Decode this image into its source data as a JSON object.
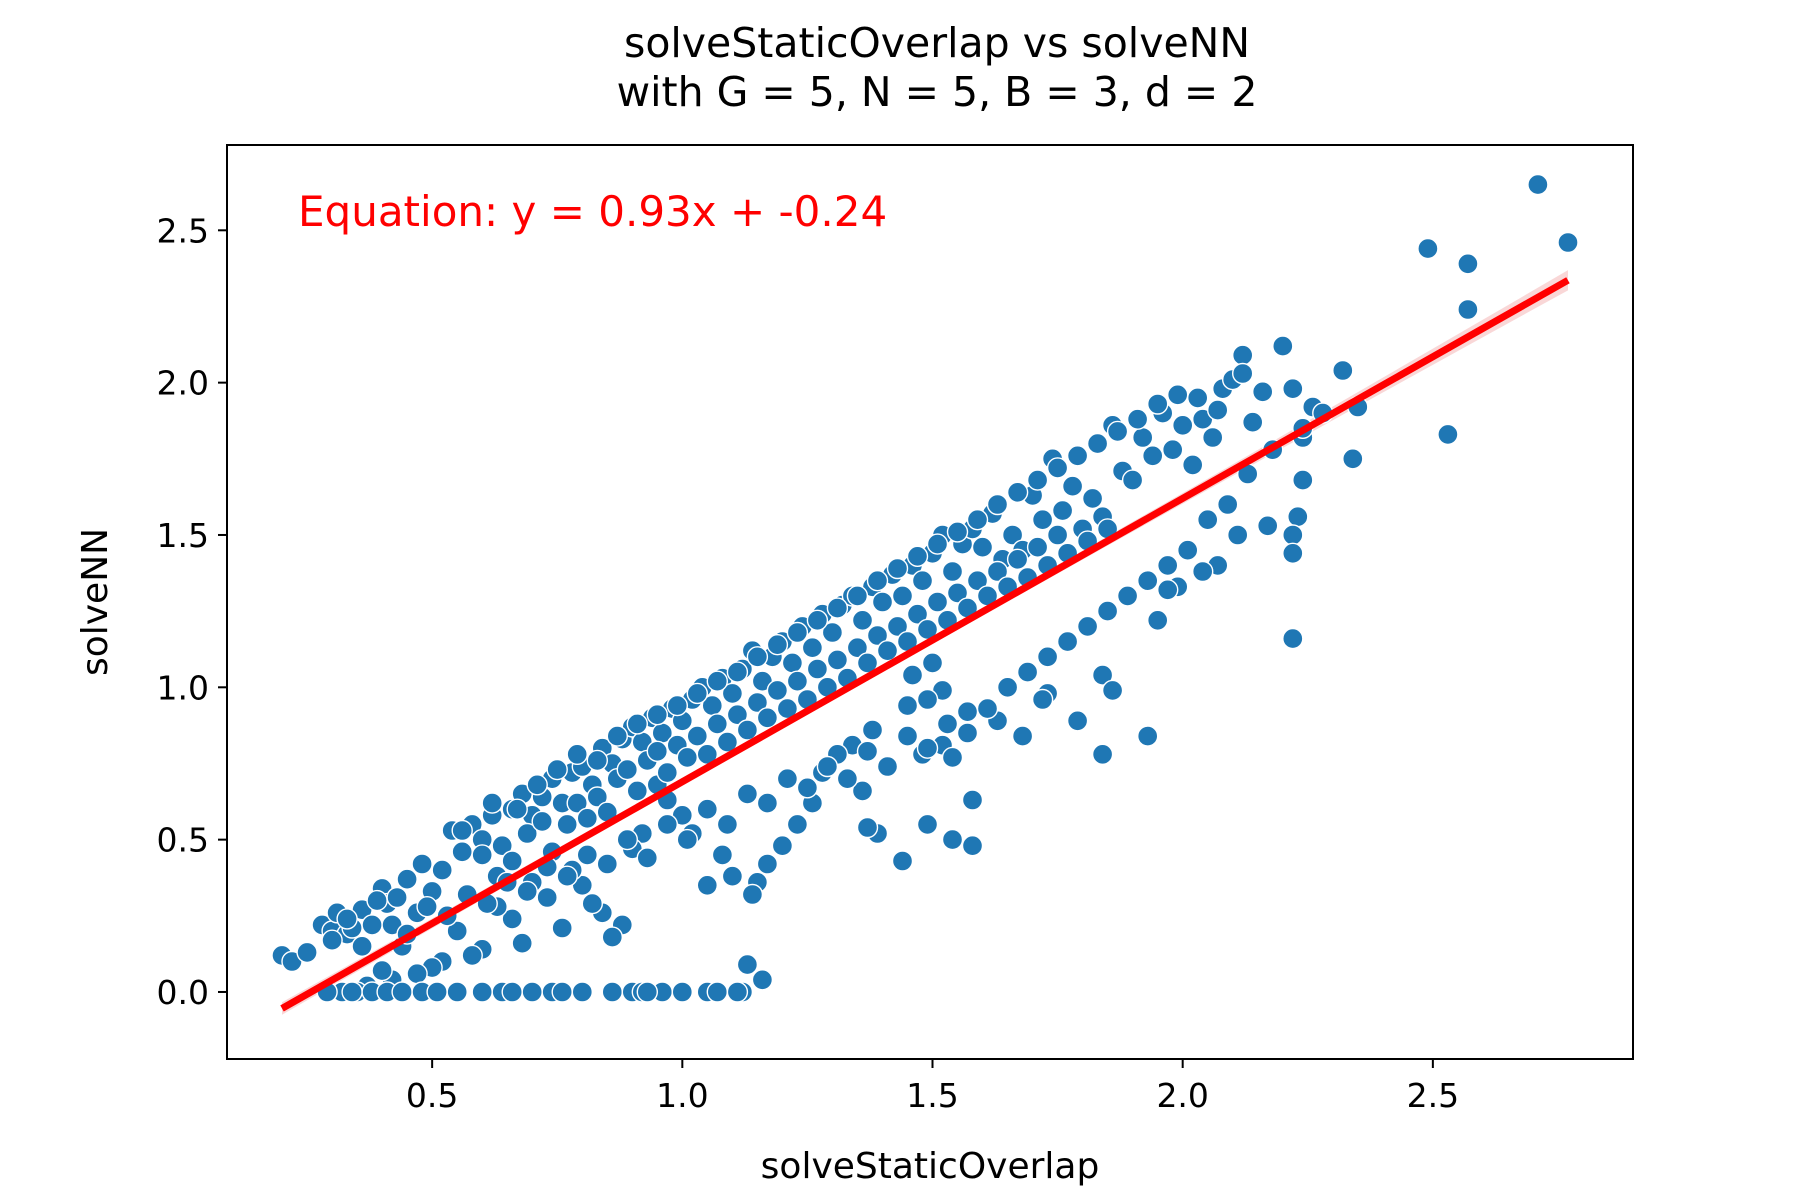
{
  "chart_data": {
    "type": "scatter",
    "title": "solveStaticOverlap vs solveNN",
    "subtitle": "with G = 5, N = 5, B = 3, d = 2",
    "xlabel": "solveStaticOverlap",
    "ylabel": "solveNN",
    "xlim": [
      0.09,
      2.9
    ],
    "ylim": [
      -0.22,
      2.78
    ],
    "xticks": [
      0.5,
      1.0,
      1.5,
      2.0,
      2.5
    ],
    "xtick_labels": [
      "0.5",
      "1.0",
      "1.5",
      "2.0",
      "2.5"
    ],
    "yticks": [
      0.0,
      0.5,
      1.0,
      1.5,
      2.0,
      2.5
    ],
    "ytick_labels": [
      "0.0",
      "0.5",
      "1.0",
      "1.5",
      "2.0",
      "2.5"
    ],
    "grid": false,
    "equation": "Equation: y = 0.93x + -0.24",
    "regression": {
      "slope": 0.93,
      "intercept": -0.24,
      "x_range": [
        0.2,
        2.77
      ]
    },
    "colors": {
      "points": "#1f77b4",
      "point_edge": "#ffffff",
      "regression": "#ff0000",
      "confidence_band": "#f4b6b6",
      "equation": "#ff0000"
    },
    "points": [
      [
        0.2,
        0.12
      ],
      [
        0.22,
        0.1
      ],
      [
        0.25,
        0.13
      ],
      [
        0.28,
        0.22
      ],
      [
        0.3,
        0.2
      ],
      [
        0.31,
        0.26
      ],
      [
        0.33,
        0.19
      ],
      [
        0.34,
        0.21
      ],
      [
        0.36,
        0.27
      ],
      [
        0.38,
        0.22
      ],
      [
        0.4,
        0.34
      ],
      [
        0.41,
        0.29
      ],
      [
        0.43,
        0.31
      ],
      [
        0.45,
        0.37
      ],
      [
        0.47,
        0.26
      ],
      [
        0.48,
        0.42
      ],
      [
        0.5,
        0.33
      ],
      [
        0.52,
        0.4
      ],
      [
        0.54,
        0.53
      ],
      [
        0.56,
        0.46
      ],
      [
        0.58,
        0.55
      ],
      [
        0.6,
        0.5
      ],
      [
        0.62,
        0.58
      ],
      [
        0.64,
        0.48
      ],
      [
        0.66,
        0.6
      ],
      [
        0.68,
        0.65
      ],
      [
        0.7,
        0.58
      ],
      [
        0.72,
        0.64
      ],
      [
        0.74,
        0.7
      ],
      [
        0.76,
        0.62
      ],
      [
        0.78,
        0.72
      ],
      [
        0.8,
        0.74
      ],
      [
        0.82,
        0.68
      ],
      [
        0.84,
        0.8
      ],
      [
        0.86,
        0.75
      ],
      [
        0.88,
        0.83
      ],
      [
        0.9,
        0.87
      ],
      [
        0.92,
        0.82
      ],
      [
        0.94,
        0.9
      ],
      [
        0.96,
        0.85
      ],
      [
        0.98,
        0.93
      ],
      [
        1.0,
        0.89
      ],
      [
        1.02,
        0.96
      ],
      [
        1.04,
        1.0
      ],
      [
        1.06,
        0.94
      ],
      [
        1.08,
        1.03
      ],
      [
        1.1,
        0.98
      ],
      [
        1.12,
        1.06
      ],
      [
        1.14,
        1.12
      ],
      [
        1.16,
        1.02
      ],
      [
        1.18,
        1.1
      ],
      [
        1.2,
        1.15
      ],
      [
        1.22,
        1.08
      ],
      [
        1.24,
        1.2
      ],
      [
        1.26,
        1.13
      ],
      [
        1.28,
        1.24
      ],
      [
        1.3,
        1.18
      ],
      [
        1.32,
        1.27
      ],
      [
        1.34,
        1.3
      ],
      [
        1.36,
        1.22
      ],
      [
        1.38,
        1.33
      ],
      [
        1.4,
        1.28
      ],
      [
        1.42,
        1.37
      ],
      [
        1.44,
        1.3
      ],
      [
        1.46,
        1.4
      ],
      [
        1.48,
        1.35
      ],
      [
        1.5,
        1.44
      ],
      [
        1.52,
        1.5
      ],
      [
        1.54,
        1.38
      ],
      [
        1.56,
        1.47
      ],
      [
        1.58,
        1.52
      ],
      [
        1.6,
        1.46
      ],
      [
        1.62,
        1.57
      ],
      [
        1.64,
        1.42
      ],
      [
        1.66,
        1.5
      ],
      [
        1.68,
        1.45
      ],
      [
        1.7,
        1.63
      ],
      [
        1.72,
        1.55
      ],
      [
        1.74,
        1.75
      ],
      [
        1.76,
        1.58
      ],
      [
        1.78,
        1.66
      ],
      [
        1.8,
        1.52
      ],
      [
        1.82,
        1.62
      ],
      [
        1.84,
        1.56
      ],
      [
        1.86,
        1.86
      ],
      [
        1.88,
        1.71
      ],
      [
        1.9,
        1.68
      ],
      [
        1.92,
        1.82
      ],
      [
        1.94,
        1.76
      ],
      [
        1.96,
        1.9
      ],
      [
        1.98,
        1.78
      ],
      [
        2.0,
        1.86
      ],
      [
        2.02,
        1.73
      ],
      [
        2.04,
        1.88
      ],
      [
        2.06,
        1.82
      ],
      [
        2.08,
        1.98
      ],
      [
        2.1,
        2.01
      ],
      [
        2.12,
        2.09
      ],
      [
        2.14,
        1.87
      ],
      [
        2.2,
        2.12
      ],
      [
        2.22,
        1.98
      ],
      [
        2.26,
        1.92
      ],
      [
        2.32,
        2.04
      ],
      [
        2.35,
        1.92
      ],
      [
        2.49,
        2.44
      ],
      [
        2.57,
        2.39
      ],
      [
        2.71,
        2.65
      ],
      [
        2.77,
        2.46
      ],
      [
        2.57,
        2.24
      ],
      [
        2.53,
        1.83
      ],
      [
        2.34,
        1.75
      ],
      [
        2.24,
        1.82
      ],
      [
        2.24,
        1.68
      ],
      [
        2.23,
        1.56
      ],
      [
        2.22,
        1.5
      ],
      [
        2.22,
        1.44
      ],
      [
        2.22,
        1.16
      ],
      [
        2.17,
        1.53
      ],
      [
        2.11,
        1.5
      ],
      [
        2.07,
        1.4
      ],
      [
        2.04,
        1.38
      ],
      [
        1.99,
        1.33
      ],
      [
        1.97,
        1.32
      ],
      [
        1.95,
        1.22
      ],
      [
        1.93,
        0.84
      ],
      [
        1.84,
        0.78
      ],
      [
        1.84,
        1.04
      ],
      [
        1.86,
        0.99
      ],
      [
        1.79,
        0.89
      ],
      [
        1.73,
        0.98
      ],
      [
        1.72,
        0.96
      ],
      [
        1.68,
        0.84
      ],
      [
        1.63,
        0.89
      ],
      [
        1.57,
        0.92
      ],
      [
        1.52,
        0.99
      ],
      [
        1.5,
        1.08
      ],
      [
        1.49,
        0.96
      ],
      [
        1.46,
        1.04
      ],
      [
        1.45,
        0.94
      ],
      [
        1.48,
        0.78
      ],
      [
        1.52,
        0.81
      ],
      [
        1.54,
        0.77
      ],
      [
        1.58,
        0.63
      ],
      [
        1.54,
        0.5
      ],
      [
        1.58,
        0.48
      ],
      [
        1.49,
        0.55
      ],
      [
        1.44,
        0.43
      ],
      [
        1.39,
        0.52
      ],
      [
        1.37,
        0.54
      ],
      [
        1.36,
        0.66
      ],
      [
        1.38,
        0.86
      ],
      [
        1.34,
        0.81
      ],
      [
        1.31,
        0.78
      ],
      [
        1.28,
        0.72
      ],
      [
        1.26,
        0.62
      ],
      [
        1.23,
        0.55
      ],
      [
        1.2,
        0.48
      ],
      [
        1.17,
        0.42
      ],
      [
        1.15,
        0.36
      ],
      [
        1.14,
        0.32
      ],
      [
        1.1,
        0.38
      ],
      [
        1.08,
        0.45
      ],
      [
        1.05,
        0.35
      ],
      [
        1.02,
        0.52
      ],
      [
        1.0,
        0.58
      ],
      [
        0.97,
        0.63
      ],
      [
        0.95,
        0.68
      ],
      [
        0.92,
        0.52
      ],
      [
        0.9,
        0.47
      ],
      [
        0.88,
        0.22
      ],
      [
        0.86,
        0.18
      ],
      [
        0.84,
        0.26
      ],
      [
        0.82,
        0.29
      ],
      [
        0.8,
        0.35
      ],
      [
        0.78,
        0.4
      ],
      [
        0.76,
        0.21
      ],
      [
        0.73,
        0.31
      ],
      [
        0.7,
        0.36
      ],
      [
        0.68,
        0.16
      ],
      [
        0.66,
        0.24
      ],
      [
        0.63,
        0.28
      ],
      [
        0.6,
        0.14
      ],
      [
        0.58,
        0.12
      ],
      [
        0.55,
        0.2
      ],
      [
        0.52,
        0.1
      ],
      [
        0.5,
        0.08
      ],
      [
        0.47,
        0.06
      ],
      [
        0.44,
        0.15
      ],
      [
        0.42,
        0.04
      ],
      [
        0.4,
        0.07
      ],
      [
        0.37,
        0.02
      ],
      [
        0.35,
        0.0
      ],
      [
        0.32,
        0.0
      ],
      [
        0.29,
        0.0
      ],
      [
        0.34,
        0.0
      ],
      [
        0.38,
        0.0
      ],
      [
        0.41,
        0.0
      ],
      [
        0.44,
        0.0
      ],
      [
        0.48,
        0.0
      ],
      [
        0.51,
        0.0
      ],
      [
        0.55,
        0.0
      ],
      [
        0.6,
        0.0
      ],
      [
        0.64,
        0.0
      ],
      [
        0.66,
        0.0
      ],
      [
        0.7,
        0.0
      ],
      [
        0.74,
        0.0
      ],
      [
        0.76,
        0.0
      ],
      [
        0.8,
        0.0
      ],
      [
        0.86,
        0.0
      ],
      [
        0.9,
        0.0
      ],
      [
        0.92,
        0.0
      ],
      [
        0.96,
        0.0
      ],
      [
        1.0,
        0.0
      ],
      [
        1.05,
        0.0
      ],
      [
        1.07,
        0.0
      ],
      [
        1.12,
        0.0
      ],
      [
        1.13,
        0.09
      ],
      [
        1.16,
        0.04
      ],
      [
        1.11,
        0.0
      ],
      [
        0.93,
        0.0
      ],
      [
        0.56,
        0.53
      ],
      [
        0.6,
        0.45
      ],
      [
        0.63,
        0.38
      ],
      [
        0.66,
        0.43
      ],
      [
        0.69,
        0.52
      ],
      [
        0.72,
        0.56
      ],
      [
        0.74,
        0.46
      ],
      [
        0.77,
        0.55
      ],
      [
        0.79,
        0.62
      ],
      [
        0.81,
        0.57
      ],
      [
        0.83,
        0.64
      ],
      [
        0.85,
        0.59
      ],
      [
        0.87,
        0.7
      ],
      [
        0.89,
        0.73
      ],
      [
        0.91,
        0.66
      ],
      [
        0.93,
        0.76
      ],
      [
        0.95,
        0.79
      ],
      [
        0.97,
        0.72
      ],
      [
        0.99,
        0.81
      ],
      [
        1.01,
        0.77
      ],
      [
        1.03,
        0.84
      ],
      [
        1.05,
        0.78
      ],
      [
        1.07,
        0.88
      ],
      [
        1.09,
        0.82
      ],
      [
        1.11,
        0.91
      ],
      [
        1.13,
        0.86
      ],
      [
        1.15,
        0.95
      ],
      [
        1.17,
        0.9
      ],
      [
        1.19,
        0.99
      ],
      [
        1.21,
        0.93
      ],
      [
        1.23,
        1.02
      ],
      [
        1.25,
        0.96
      ],
      [
        1.27,
        1.06
      ],
      [
        1.29,
        1.0
      ],
      [
        1.31,
        1.09
      ],
      [
        1.33,
        1.03
      ],
      [
        1.35,
        1.13
      ],
      [
        1.37,
        1.08
      ],
      [
        1.39,
        1.17
      ],
      [
        1.41,
        1.12
      ],
      [
        1.43,
        1.2
      ],
      [
        1.45,
        1.15
      ],
      [
        1.47,
        1.24
      ],
      [
        1.49,
        1.19
      ],
      [
        1.51,
        1.28
      ],
      [
        1.53,
        1.22
      ],
      [
        1.55,
        1.31
      ],
      [
        1.57,
        1.26
      ],
      [
        1.59,
        1.35
      ],
      [
        1.61,
        1.3
      ],
      [
        1.63,
        1.38
      ],
      [
        1.65,
        1.33
      ],
      [
        1.67,
        1.42
      ],
      [
        1.69,
        1.36
      ],
      [
        1.71,
        1.46
      ],
      [
        1.73,
        1.4
      ],
      [
        1.75,
        1.5
      ],
      [
        1.77,
        1.44
      ],
      [
        1.81,
        1.48
      ],
      [
        1.85,
        1.52
      ],
      [
        0.3,
        0.17
      ],
      [
        0.33,
        0.24
      ],
      [
        0.36,
        0.15
      ],
      [
        0.39,
        0.3
      ],
      [
        0.42,
        0.22
      ],
      [
        0.45,
        0.19
      ],
      [
        0.49,
        0.28
      ],
      [
        0.53,
        0.25
      ],
      [
        0.57,
        0.32
      ],
      [
        0.61,
        0.29
      ],
      [
        0.65,
        0.36
      ],
      [
        0.69,
        0.33
      ],
      [
        0.73,
        0.41
      ],
      [
        0.77,
        0.38
      ],
      [
        0.81,
        0.45
      ],
      [
        0.85,
        0.42
      ],
      [
        0.89,
        0.5
      ],
      [
        0.93,
        0.44
      ],
      [
        0.97,
        0.55
      ],
      [
        1.01,
        0.5
      ],
      [
        1.05,
        0.6
      ],
      [
        1.09,
        0.55
      ],
      [
        1.13,
        0.65
      ],
      [
        1.17,
        0.62
      ],
      [
        1.21,
        0.7
      ],
      [
        1.25,
        0.67
      ],
      [
        1.29,
        0.74
      ],
      [
        1.33,
        0.7
      ],
      [
        1.37,
        0.79
      ],
      [
        1.41,
        0.74
      ],
      [
        1.45,
        0.84
      ],
      [
        1.49,
        0.8
      ],
      [
        1.53,
        0.88
      ],
      [
        1.57,
        0.85
      ],
      [
        1.61,
        0.93
      ],
      [
        1.65,
        1.0
      ],
      [
        1.69,
        1.05
      ],
      [
        1.73,
        1.1
      ],
      [
        1.77,
        1.15
      ],
      [
        1.81,
        1.2
      ],
      [
        1.85,
        1.25
      ],
      [
        1.89,
        1.3
      ],
      [
        1.93,
        1.35
      ],
      [
        1.97,
        1.4
      ],
      [
        2.01,
        1.45
      ],
      [
        2.05,
        1.55
      ],
      [
        2.09,
        1.6
      ],
      [
        2.13,
        1.7
      ],
      [
        2.18,
        1.78
      ],
      [
        2.24,
        1.85
      ],
      [
        0.62,
        0.62
      ],
      [
        0.67,
        0.6
      ],
      [
        0.71,
        0.68
      ],
      [
        0.75,
        0.73
      ],
      [
        0.79,
        0.78
      ],
      [
        0.83,
        0.76
      ],
      [
        0.87,
        0.84
      ],
      [
        0.91,
        0.88
      ],
      [
        0.95,
        0.91
      ],
      [
        0.99,
        0.94
      ],
      [
        1.03,
        0.98
      ],
      [
        1.07,
        1.02
      ],
      [
        1.11,
        1.05
      ],
      [
        1.15,
        1.1
      ],
      [
        1.19,
        1.14
      ],
      [
        1.23,
        1.18
      ],
      [
        1.27,
        1.22
      ],
      [
        1.31,
        1.26
      ],
      [
        1.35,
        1.3
      ],
      [
        1.39,
        1.35
      ],
      [
        1.43,
        1.39
      ],
      [
        1.47,
        1.43
      ],
      [
        1.51,
        1.47
      ],
      [
        1.55,
        1.51
      ],
      [
        1.59,
        1.55
      ],
      [
        1.63,
        1.6
      ],
      [
        1.67,
        1.64
      ],
      [
        1.71,
        1.68
      ],
      [
        1.75,
        1.72
      ],
      [
        1.79,
        1.76
      ],
      [
        1.83,
        1.8
      ],
      [
        1.87,
        1.84
      ],
      [
        1.91,
        1.88
      ],
      [
        1.95,
        1.93
      ],
      [
        1.99,
        1.96
      ],
      [
        2.03,
        1.95
      ],
      [
        2.07,
        1.91
      ],
      [
        2.12,
        2.03
      ],
      [
        2.16,
        1.97
      ],
      [
        2.28,
        1.9
      ]
    ]
  }
}
